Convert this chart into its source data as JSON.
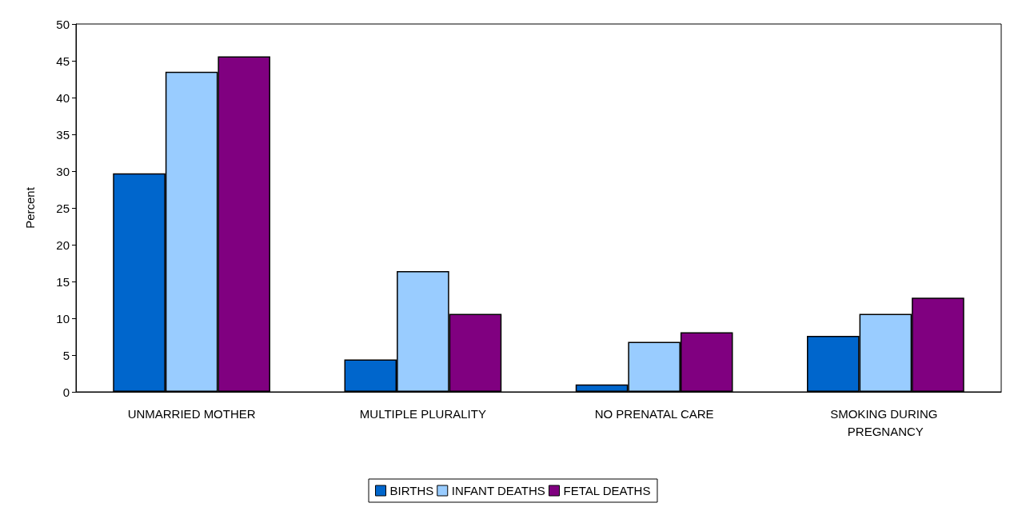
{
  "chart_data": {
    "type": "bar",
    "ylabel": "Percent",
    "categories": [
      "UNMARRIED MOTHER",
      "MULTIPLE PLURALITY",
      "NO PRENATAL CARE",
      "SMOKING DURING PREGNANCY"
    ],
    "series": [
      {
        "name": "BIRTHS",
        "color": "#0066cc",
        "values": [
          29.7,
          4.4,
          1.0,
          7.6
        ]
      },
      {
        "name": "INFANT DEATHS",
        "color": "#99ccff",
        "values": [
          43.5,
          16.4,
          6.8,
          10.6
        ]
      },
      {
        "name": "FETAL DEATHS",
        "color": "#800080",
        "values": [
          45.6,
          10.6,
          8.1,
          12.8
        ]
      }
    ],
    "ylim": [
      0,
      50
    ],
    "yticks": [
      0,
      5,
      10,
      15,
      20,
      25,
      30,
      35,
      40,
      45,
      50
    ],
    "grid": false,
    "legend": "bottom"
  }
}
